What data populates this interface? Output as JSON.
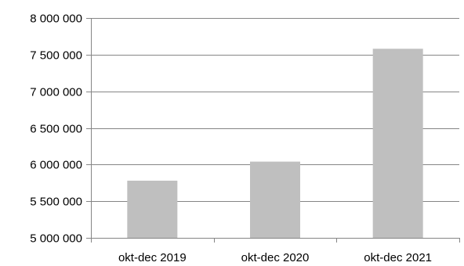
{
  "chart_data": {
    "type": "bar",
    "title": "",
    "xlabel": "",
    "ylabel": "",
    "categories": [
      "okt-dec 2019",
      "okt-dec 2020",
      "okt-dec 2021"
    ],
    "values": [
      5780000,
      6040000,
      7580000
    ],
    "ylim": [
      5000000,
      8000000
    ],
    "yticks": [
      5000000,
      5500000,
      6000000,
      6500000,
      7000000,
      7500000,
      8000000
    ],
    "ytick_labels": [
      "5 000 000",
      "5 500 000",
      "6 000 000",
      "6 500 000",
      "7 000 000",
      "7 500 000",
      "8 000 000"
    ],
    "grid": true,
    "legend": "none",
    "colors": {
      "bar": "#BFBFBF",
      "grid": "#858585",
      "text": "#000000"
    }
  }
}
